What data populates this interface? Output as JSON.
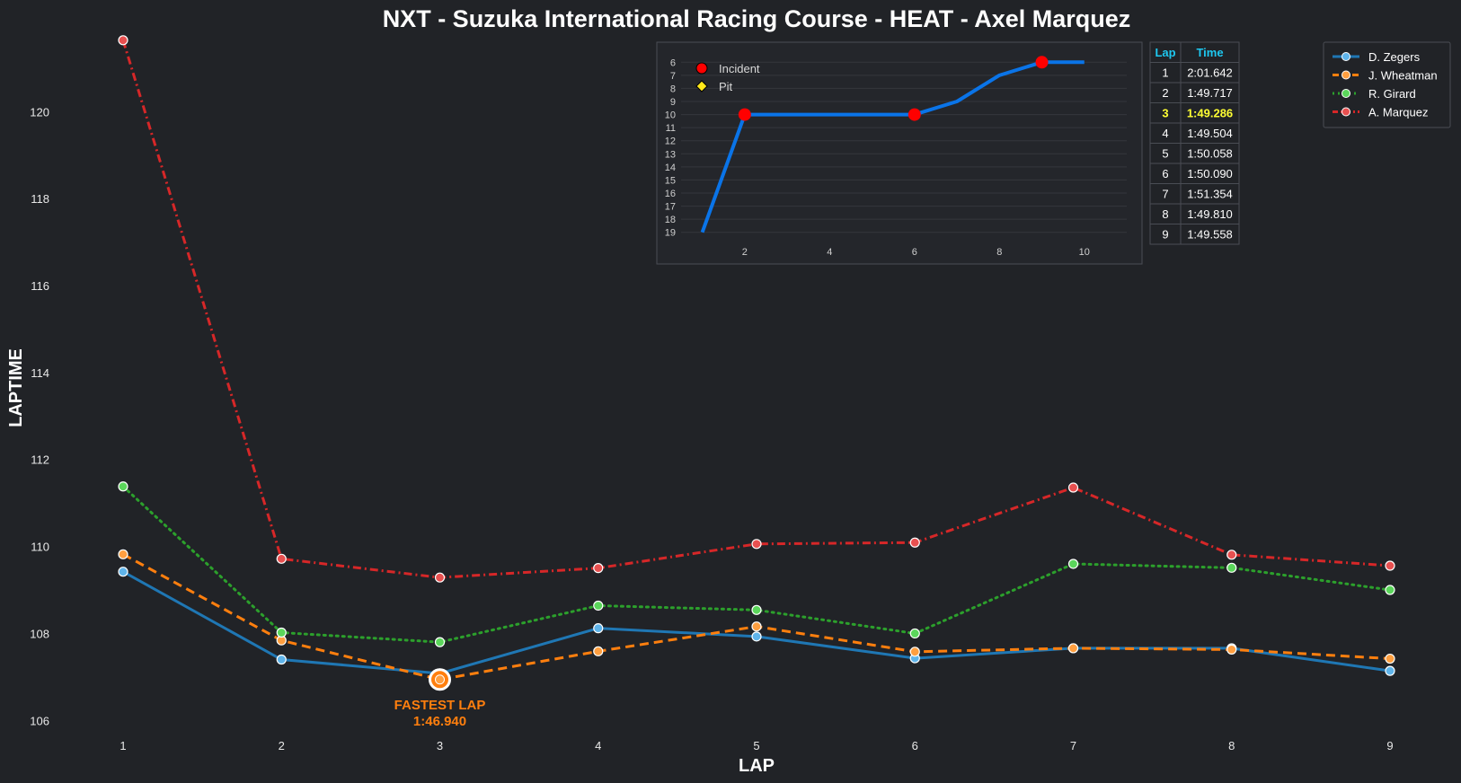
{
  "chart_data": {
    "type": "line",
    "title": "NXT - Suzuka International Racing Course - HEAT - Axel Marquez",
    "xlabel": "LAP",
    "ylabel": "LAPTIME",
    "x": [
      1,
      2,
      3,
      4,
      5,
      6,
      7,
      8,
      9
    ],
    "ylim": [
      105.8,
      121.7
    ],
    "yticks": [
      106,
      108,
      110,
      112,
      114,
      116,
      118,
      120
    ],
    "grid": false,
    "legend_position": "top-right",
    "series": [
      {
        "name": "D. Zegers",
        "color": "#1f77b4",
        "style": "solid",
        "marker_fill": "#5fb4ea",
        "values": [
          109.42,
          107.4,
          107.08,
          108.12,
          107.93,
          107.43,
          107.66,
          107.66,
          107.14
        ]
      },
      {
        "name": "J. Wheatman",
        "color": "#ff7f0e",
        "style": "dashed",
        "marker_fill": "#ff9f40",
        "values": [
          109.82,
          107.84,
          106.94,
          107.59,
          108.16,
          107.58,
          107.66,
          107.63,
          107.42
        ]
      },
      {
        "name": "R. Girard",
        "color": "#2ca02c",
        "style": "dotted",
        "marker_fill": "#5bd65b",
        "values": [
          111.38,
          108.02,
          107.8,
          108.64,
          108.54,
          108.0,
          109.6,
          109.51,
          109.0
        ]
      },
      {
        "name": "A. Marquez",
        "color": "#d62728",
        "style": "dashdot",
        "marker_fill": "#e85050",
        "values": [
          121.642,
          109.717,
          109.286,
          109.504,
          110.058,
          110.09,
          111.354,
          109.81,
          109.558
        ]
      }
    ],
    "annotation": {
      "label": "FASTEST LAP",
      "value": "1:46.940",
      "lap": 3,
      "laptime": 106.94,
      "series": "J. Wheatman"
    },
    "inset": {
      "type": "line",
      "description_series": "position",
      "x": [
        1,
        2,
        3,
        4,
        5,
        6,
        7,
        8,
        9,
        10
      ],
      "values": [
        19,
        10,
        10,
        10,
        10,
        10,
        9,
        7,
        6,
        6
      ],
      "xticks": [
        2,
        4,
        6,
        8,
        10
      ],
      "yticks": [
        6,
        7,
        8,
        9,
        10,
        11,
        12,
        13,
        14,
        15,
        16,
        17,
        18,
        19
      ],
      "ylim_inverted": [
        5.5,
        19.5
      ],
      "line_color": "#0a74e8",
      "incidents": [
        2,
        6,
        9
      ],
      "incident_color": "#ff0000",
      "pit_color": "#ffe81a",
      "legend": [
        {
          "label": "Incident",
          "marker": "circle-red"
        },
        {
          "label": "Pit",
          "marker": "diamond-yellow"
        }
      ]
    },
    "laptime_table": {
      "headers": [
        "Lap",
        "Time"
      ],
      "rows": [
        [
          "1",
          "2:01.642"
        ],
        [
          "2",
          "1:49.717"
        ],
        [
          "3",
          "1:49.286"
        ],
        [
          "4",
          "1:49.504"
        ],
        [
          "5",
          "1:50.058"
        ],
        [
          "6",
          "1:50.090"
        ],
        [
          "7",
          "1:51.354"
        ],
        [
          "8",
          "1:49.810"
        ],
        [
          "9",
          "1:49.558"
        ]
      ],
      "best_row": 2,
      "header_color": "#1ec8f0",
      "best_color": "#ffff33"
    }
  }
}
